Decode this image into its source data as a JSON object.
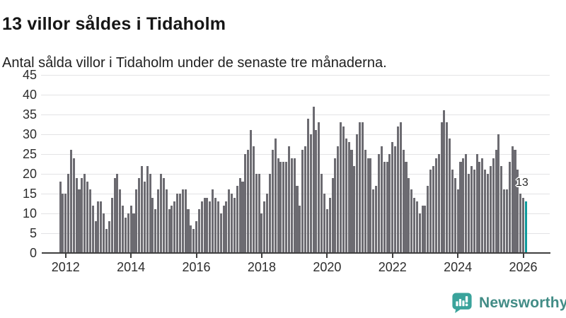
{
  "header": {
    "title": "13 villor såldes i Tidaholm",
    "subtitle": "Antal sålda villor i Tidaholm under de senaste tre månaderna."
  },
  "annotation": {
    "last_value_label": "13"
  },
  "footer": {
    "brand_name": "Newsworthy",
    "icon": "newsworthy-speech-bubble-chart-icon"
  },
  "colors": {
    "bar": "#6c6b71",
    "highlight_bar": "#0e9a9c",
    "gridline": "#e3e3e5",
    "axis_line": "#3f3f3f",
    "tick_label": "#2d2d2d",
    "title_text": "#161616",
    "annotation_text": "#2b2b2b",
    "brand_teal": "#3aa39b",
    "brand_wordmark": "#428c86"
  },
  "chart_data": {
    "type": "bar",
    "title": "13 villor såldes i Tidaholm",
    "subtitle": "Antal sålda villor i Tidaholm under de senaste tre månaderna.",
    "ylabel": "",
    "xlabel": "",
    "x_start": "2011-11",
    "x_end": "2026-02",
    "frequency": "monthly",
    "x_tick_years": [
      2012,
      2014,
      2016,
      2018,
      2020,
      2022,
      2024,
      2026
    ],
    "y_ticks": [
      0,
      5,
      10,
      15,
      20,
      25,
      30,
      35,
      40,
      45
    ],
    "ylim": [
      0,
      45
    ],
    "grid": "horizontal",
    "legend": "none",
    "highlight_last_bar": true,
    "highlight_value": 13,
    "values": [
      18,
      15,
      15,
      20,
      26,
      24,
      19,
      16,
      19,
      20,
      18,
      16,
      12,
      8,
      13,
      13,
      10,
      6,
      8,
      14,
      19,
      20,
      16,
      12,
      9,
      10,
      12,
      10,
      16,
      19,
      22,
      18,
      22,
      20,
      14,
      11,
      16,
      20,
      19,
      16,
      11,
      12,
      13,
      15,
      15,
      16,
      16,
      11,
      7,
      6,
      8,
      11,
      13,
      14,
      14,
      13,
      16,
      14,
      13,
      10,
      12,
      13,
      16,
      15,
      14,
      17,
      19,
      18,
      25,
      26,
      31,
      27,
      20,
      20,
      10,
      13,
      15,
      20,
      26,
      29,
      24,
      23,
      23,
      23,
      27,
      24,
      24,
      17,
      12,
      26,
      27,
      34,
      30,
      37,
      31,
      33,
      20,
      15,
      11,
      14,
      19,
      24,
      27,
      33,
      32,
      29,
      28,
      26,
      22,
      30,
      33,
      33,
      26,
      24,
      24,
      16,
      17,
      25,
      27,
      23,
      23,
      25,
      28,
      27,
      32,
      33,
      26,
      23,
      19,
      16,
      14,
      13,
      10,
      12,
      12,
      17,
      21,
      22,
      24,
      25,
      33,
      36,
      33,
      29,
      21,
      19,
      16,
      23,
      24,
      25,
      20,
      22,
      21,
      25,
      23,
      24,
      21,
      20,
      22,
      24,
      26,
      30,
      22,
      16,
      16,
      23,
      27,
      26,
      21,
      15,
      14,
      13
    ]
  }
}
